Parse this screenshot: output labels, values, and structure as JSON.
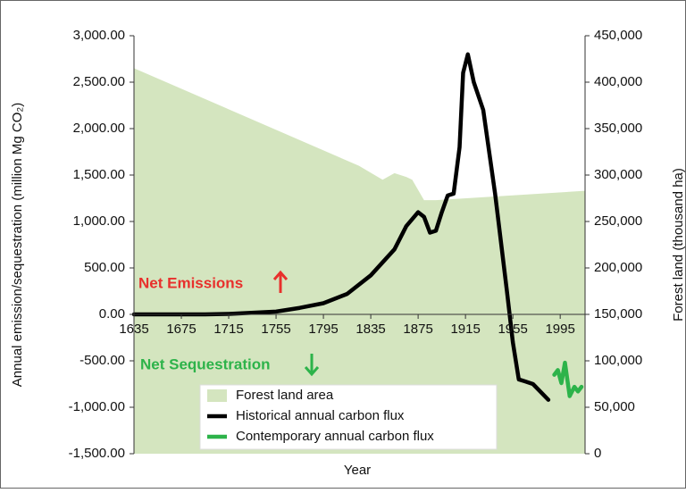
{
  "chart_data": {
    "type": "line",
    "xlabel": "Year",
    "ylabel": "Annual emission/sequestration (million Mg CO₂)",
    "y2label": "Forest land (thousand ha)",
    "annotations": [
      "Net Emissions",
      "Net Sequestration"
    ],
    "xlim": [
      1635,
      2016
    ],
    "xticks": [
      1635,
      1675,
      1715,
      1755,
      1795,
      1835,
      1875,
      1915,
      1955,
      1995
    ],
    "ylim": [
      -1500,
      3000
    ],
    "yticks": [
      {
        "value": -1500,
        "label": "-1,500.00"
      },
      {
        "value": -1000,
        "label": "-1,000.00"
      },
      {
        "value": -500,
        "label": "-500.00"
      },
      {
        "value": 0,
        "label": "0.00"
      },
      {
        "value": 500,
        "label": "500.00"
      },
      {
        "value": 1000,
        "label": "1,000.00"
      },
      {
        "value": 1500,
        "label": "1,500.00"
      },
      {
        "value": 2000,
        "label": "2,000.00"
      },
      {
        "value": 2500,
        "label": "2,500.00"
      },
      {
        "value": 3000,
        "label": "3,000.00"
      }
    ],
    "y2lim": [
      0,
      450000
    ],
    "y2ticks": [
      0,
      {
        "value": 50000,
        "label": "50,000"
      },
      {
        "value": 100000,
        "label": "100,000"
      },
      {
        "value": 150000,
        "label": "150,000"
      },
      {
        "value": 200000,
        "label": "200,000"
      },
      {
        "value": 250000,
        "label": "250,000"
      },
      {
        "value": 300000,
        "label": "300,000"
      },
      {
        "value": 350000,
        "label": "350,000"
      },
      {
        "value": 400000,
        "label": "400,000"
      },
      {
        "value": 450000,
        "label": "450,000"
      }
    ],
    "series": [
      {
        "name": "Forest land area",
        "color": "#d4e5bf",
        "axis": "y2",
        "kind": "area",
        "x": [
          1635,
          1825,
          1845,
          1855,
          1865,
          1870,
          1880,
          1890,
          2016
        ],
        "values": [
          415000,
          310000,
          295000,
          302000,
          298000,
          295000,
          273000,
          273000,
          283000
        ]
      },
      {
        "name": "Historical annual carbon flux",
        "color": "#000000",
        "kind": "line",
        "x": [
          1635,
          1695,
          1715,
          1755,
          1775,
          1795,
          1815,
          1835,
          1855,
          1865,
          1875,
          1880,
          1885,
          1890,
          1895,
          1900,
          1905,
          1910,
          1913,
          1917,
          1922,
          1930,
          1940,
          1950,
          1955,
          1960,
          1965,
          1972,
          1985
        ],
        "values": [
          0,
          0,
          5,
          30,
          70,
          120,
          220,
          420,
          700,
          950,
          1100,
          1050,
          880,
          900,
          1100,
          1280,
          1300,
          1800,
          2600,
          2800,
          2500,
          2200,
          1300,
          250,
          -300,
          -700,
          -720,
          -750,
          -920
        ]
      },
      {
        "name": "Contemporary annual carbon flux",
        "color": "#2db34a",
        "kind": "line",
        "x": [
          1990,
          1993,
          1996,
          1999,
          2003,
          2007,
          2010,
          2013
        ],
        "values": [
          -650,
          -600,
          -740,
          -520,
          -880,
          -780,
          -830,
          -780
        ]
      }
    ]
  }
}
